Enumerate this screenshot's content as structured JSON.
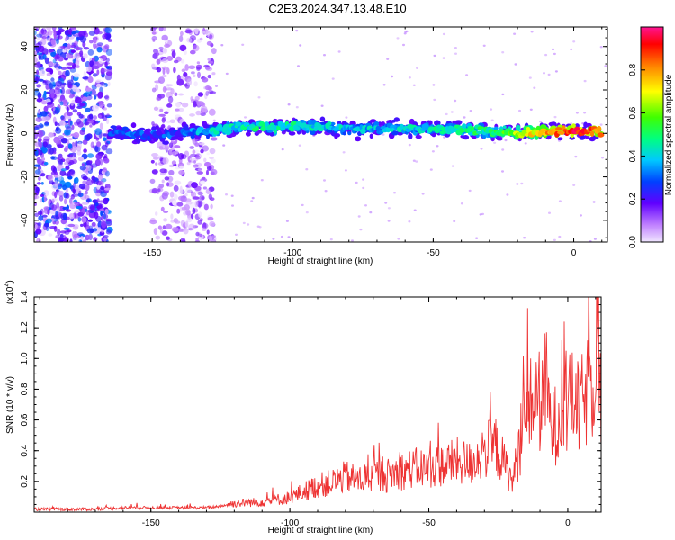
{
  "title": "C2E3.2024.347.13.48.E10",
  "colors": {
    "snr_line": "#ee3333",
    "colormap": [
      "#e8d8ff",
      "#c9a6f5",
      "#8a2be2",
      "#3a00ff",
      "#0070ff",
      "#00e5ff",
      "#00ff40",
      "#ffff00",
      "#ff8000",
      "#ff0033",
      "#ff1493"
    ]
  },
  "chart_data": [
    {
      "type": "heatmap",
      "xlabel": "Height of straight line (km)",
      "ylabel": "Frequency (Hz)",
      "xlim": [
        -192,
        12
      ],
      "ylim": [
        -50,
        49
      ],
      "x_ticks": [
        -150,
        -100,
        -50,
        0
      ],
      "y_ticks": [
        -40,
        -20,
        0,
        20,
        40
      ],
      "colorbar": {
        "label": "Normalized spectral amplitude",
        "range": [
          0.0,
          1.0
        ],
        "ticks": [
          "0.0",
          "0.2",
          "0.4",
          "0.6",
          "0.8"
        ]
      },
      "ridge": {
        "x": [
          -165,
          -150,
          -140,
          -130,
          -120,
          -110,
          -100,
          -90,
          -80,
          -70,
          -60,
          -50,
          -40,
          -30,
          -20,
          -10,
          0,
          10
        ],
        "center_freq": [
          1,
          -1,
          0,
          1,
          3,
          3,
          3,
          3,
          2,
          2,
          2,
          2,
          2,
          1,
          0,
          1,
          1,
          1
        ],
        "amplitude": [
          0.25,
          0.22,
          0.25,
          0.35,
          0.4,
          0.42,
          0.4,
          0.38,
          0.35,
          0.35,
          0.38,
          0.4,
          0.42,
          0.45,
          0.6,
          0.75,
          0.9,
          0.8
        ]
      },
      "noise_regions": [
        {
          "x": [
            -192,
            -165
          ],
          "y": [
            -50,
            49
          ],
          "amplitude": 0.15
        },
        {
          "x": [
            -150,
            -128
          ],
          "y": [
            -50,
            49
          ],
          "amplitude": 0.08
        }
      ]
    },
    {
      "type": "line",
      "xlabel": "Height of straight line (km)",
      "ylabel": "SNR (10 * v/v)",
      "y_multiplier": "(x10",
      "y_multiplier_exp": "4",
      "xlim": [
        -192,
        12
      ],
      "ylim": [
        0,
        1.4
      ],
      "x_ticks": [
        -150,
        -100,
        -50,
        0
      ],
      "y_ticks": [
        0.2,
        0.4,
        0.6,
        0.8,
        1.0,
        1.2,
        1.4
      ],
      "series": [
        {
          "x": [
            -192,
            -180,
            -170,
            -160,
            -150,
            -140,
            -130,
            -125,
            -120,
            -110,
            -100,
            -95,
            -90,
            -85,
            -80,
            -75,
            -70,
            -65,
            -60,
            -55,
            -50,
            -45,
            -40,
            -35,
            -30,
            -26,
            -22,
            -20,
            -18,
            -15,
            -12,
            -10,
            -8,
            -6,
            -4,
            -2,
            0,
            2,
            4,
            6,
            8,
            10,
            11,
            12
          ],
          "y": [
            0.02,
            0.02,
            0.02,
            0.03,
            0.03,
            0.03,
            0.03,
            0.04,
            0.06,
            0.07,
            0.1,
            0.14,
            0.18,
            0.2,
            0.24,
            0.22,
            0.25,
            0.25,
            0.28,
            0.3,
            0.3,
            0.32,
            0.35,
            0.33,
            0.42,
            0.45,
            0.3,
            0.2,
            0.38,
            0.65,
            0.8,
            0.75,
            0.9,
            0.58,
            0.6,
            0.75,
            0.7,
            0.8,
            0.68,
            0.78,
            0.85,
            1.0,
            1.4,
            0.55
          ]
        }
      ]
    }
  ]
}
